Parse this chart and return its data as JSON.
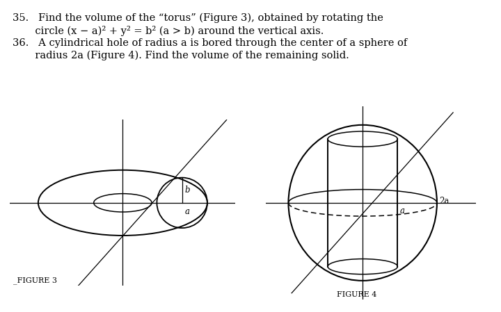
{
  "bg_color": "#ffffff",
  "text_color": "#000000",
  "line_color": "#000000",
  "fig3_label": "FIGURE 3",
  "fig4_label": "FIGURE 4",
  "label_b": "b",
  "label_a_fig3": "a",
  "label_a_fig4": "a",
  "label_2a": "2a",
  "line35_1": "35.   Find the volume of the “torus” (Figure 3), obtained by rotating the",
  "line35_2": "       circle (x − a)² + y² = b² (a > b) around the vertical axis.",
  "line36_1": "36.   A cylindrical hole of radius a is bored through the center of a sphere of",
  "line36_2": "       radius 2a (Figure 4). Find the volume of the remaining solid."
}
